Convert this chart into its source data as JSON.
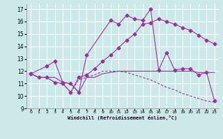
{
  "title": "",
  "xlabel": "Windchill (Refroidissement éolien,°C)",
  "bg_color": "#cce8e8",
  "grid_color": "#ffffff",
  "line_color": "#993399",
  "xlim": [
    -0.5,
    23.5
  ],
  "ylim": [
    9,
    17.4
  ],
  "xticks": [
    0,
    1,
    2,
    3,
    4,
    5,
    6,
    7,
    8,
    9,
    10,
    11,
    12,
    13,
    14,
    15,
    16,
    17,
    18,
    19,
    20,
    21,
    22,
    23
  ],
  "yticks": [
    9,
    10,
    11,
    12,
    13,
    14,
    15,
    16,
    17
  ],
  "line1_x": [
    0,
    1,
    2,
    3,
    4,
    5,
    6,
    7,
    8,
    9,
    10,
    11,
    12,
    13,
    14,
    15,
    16,
    17,
    18,
    19,
    20,
    21,
    22,
    23
  ],
  "line1_y": [
    11.8,
    11.5,
    11.5,
    11.5,
    11.1,
    11.0,
    10.3,
    11.5,
    11.5,
    11.8,
    11.9,
    12.0,
    12.0,
    12.0,
    12.0,
    12.0,
    12.0,
    12.0,
    12.0,
    12.0,
    12.0,
    11.9,
    11.9,
    11.9
  ],
  "line2_x": [
    0,
    2,
    3,
    4,
    5,
    6,
    7,
    10,
    11,
    12,
    13,
    14,
    15,
    16,
    17,
    18,
    19,
    20,
    21,
    22,
    23
  ],
  "line2_y": [
    11.8,
    12.4,
    12.8,
    11.1,
    11.0,
    10.3,
    13.3,
    16.1,
    15.8,
    16.5,
    16.2,
    16.1,
    17.0,
    12.1,
    13.5,
    12.1,
    12.2,
    12.2,
    11.7,
    11.9,
    9.6
  ],
  "line3_x": [
    0,
    1,
    2,
    3,
    4,
    5,
    6,
    7,
    8,
    9,
    10,
    11,
    12,
    13,
    14,
    15,
    16,
    17,
    18,
    19,
    20,
    21,
    22,
    23
  ],
  "line3_y": [
    11.8,
    11.5,
    11.5,
    11.1,
    11.0,
    10.3,
    11.5,
    11.7,
    12.2,
    12.8,
    13.3,
    13.9,
    14.5,
    15.0,
    15.8,
    15.9,
    16.2,
    16.0,
    15.8,
    15.5,
    15.3,
    14.9,
    14.5,
    14.2
  ],
  "line4_x": [
    0,
    1,
    2,
    3,
    4,
    5,
    6,
    7,
    8,
    9,
    10,
    11,
    12,
    13,
    14,
    15,
    16,
    17,
    18,
    19,
    20,
    21,
    22,
    23
  ],
  "line4_y": [
    11.8,
    11.5,
    11.5,
    11.1,
    11.0,
    10.3,
    11.3,
    11.5,
    11.7,
    12.0,
    12.0,
    12.0,
    11.9,
    11.7,
    11.5,
    11.3,
    11.0,
    10.7,
    10.5,
    10.2,
    10.0,
    9.8,
    9.6,
    9.5
  ]
}
